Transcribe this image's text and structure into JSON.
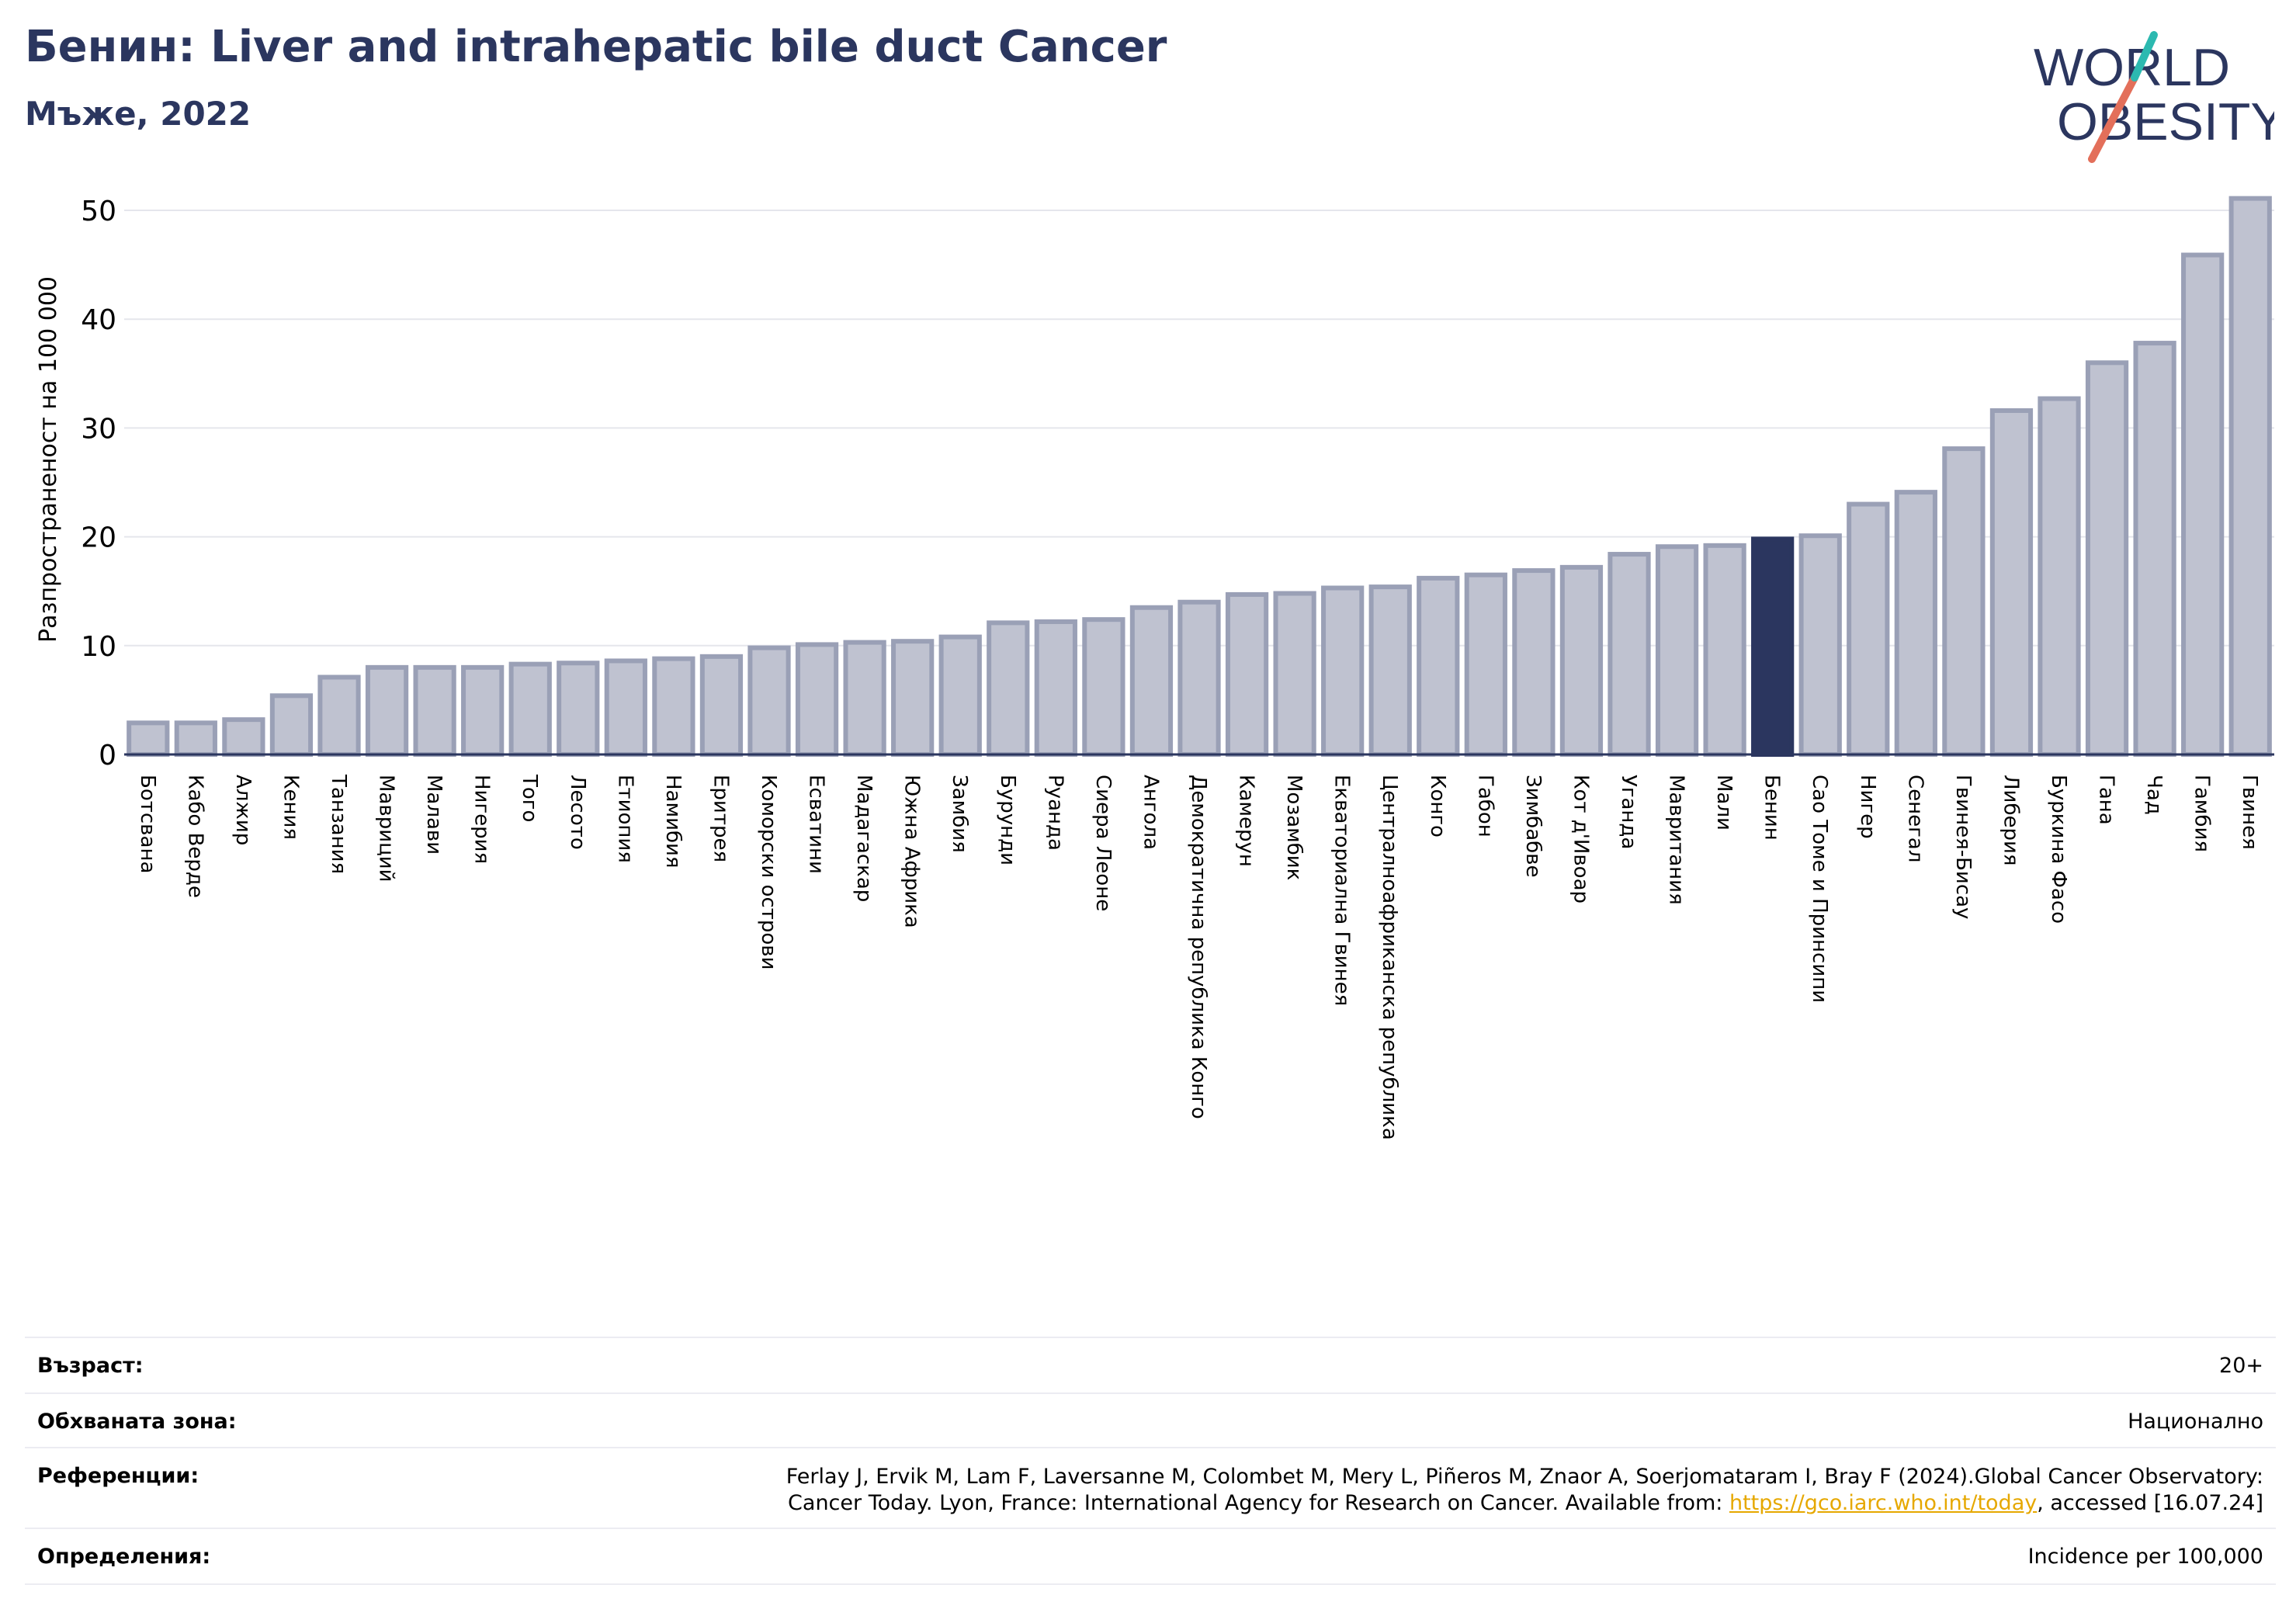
{
  "header": {
    "title": "Бенин: Liver and intrahepatic bile duct Cancer",
    "subtitle": "Мъже, 2022"
  },
  "logo": {
    "line1": "WORLD",
    "line2": "OBESITY"
  },
  "colors": {
    "bar": "#bfc2d0",
    "bar_edge": "#9aa0b6",
    "highlight": "#2b365f",
    "grid": "#e5e6ec",
    "axis": "#2b365f",
    "link": "#e6a800"
  },
  "chart_data": {
    "type": "bar",
    "ylabel": "Разпространеност  на 100 000",
    "ylim": [
      0,
      52
    ],
    "yticks": [
      0,
      10,
      20,
      30,
      40,
      50
    ],
    "grid": true,
    "highlight": "Бенин",
    "categories": [
      "Ботсвана",
      "Кабо Верде",
      "Алжир",
      "Кения",
      "Танзания",
      "Мавриций",
      "Малави",
      "Нигерия",
      "Того",
      "Лесото",
      "Етиопия",
      "Намибия",
      "Еритрея",
      "Коморски острови",
      "Есватини",
      "Мадагаскар",
      "Южна Африка",
      "Замбия",
      "Бурунди",
      "Руанда",
      "Сиера Леоне",
      "Ангола",
      "Демократична република Конго",
      "Камерун",
      "Мозамбик",
      "Екваториална Гвинея",
      "Централноафриканска република",
      "Конго",
      "Габон",
      "Зимбабве",
      "Кот д'Ивоар",
      "Уганда",
      "Мавритания",
      "Мали",
      "Бенин",
      "Сао Томе и Принсипи",
      "Нигер",
      "Сенегал",
      "Гвинея-Бисау",
      "Либерия",
      "Буркина Фасо",
      "Гана",
      "Чад",
      "Гамбия",
      "Гвинея"
    ],
    "values": [
      2.9,
      2.9,
      3.2,
      5.4,
      7.1,
      8.0,
      8.0,
      8.0,
      8.3,
      8.4,
      8.6,
      8.8,
      9.0,
      9.8,
      10.1,
      10.3,
      10.4,
      10.8,
      12.1,
      12.2,
      12.4,
      13.5,
      14.0,
      14.7,
      14.8,
      15.3,
      15.4,
      16.2,
      16.5,
      16.9,
      17.2,
      18.4,
      19.1,
      19.2,
      19.8,
      20.1,
      23.0,
      24.1,
      28.1,
      31.6,
      32.7,
      36.0,
      37.8,
      45.9,
      51.1
    ]
  },
  "info": {
    "age_label": "Възраст:",
    "age_value": "20+",
    "area_label": "Обхваната зона:",
    "area_value": "Национално",
    "ref_label": "Референции:",
    "ref_line1": "Ferlay J, Ervik M, Lam F, Laversanne M, Colombet M, Mery L, Piñeros M, Znaor A, Soerjomataram I, Bray F (2024).Global Cancer Observatory:",
    "ref_line2_pre": "Cancer Today. Lyon, France: International Agency for Research on Cancer. Available from: ",
    "ref_link": "https://gco.iarc.who.int/today",
    "ref_line2_post": ", accessed [16.07.24]",
    "def_label": "Определения:",
    "def_value": "Incidence per 100,000"
  }
}
